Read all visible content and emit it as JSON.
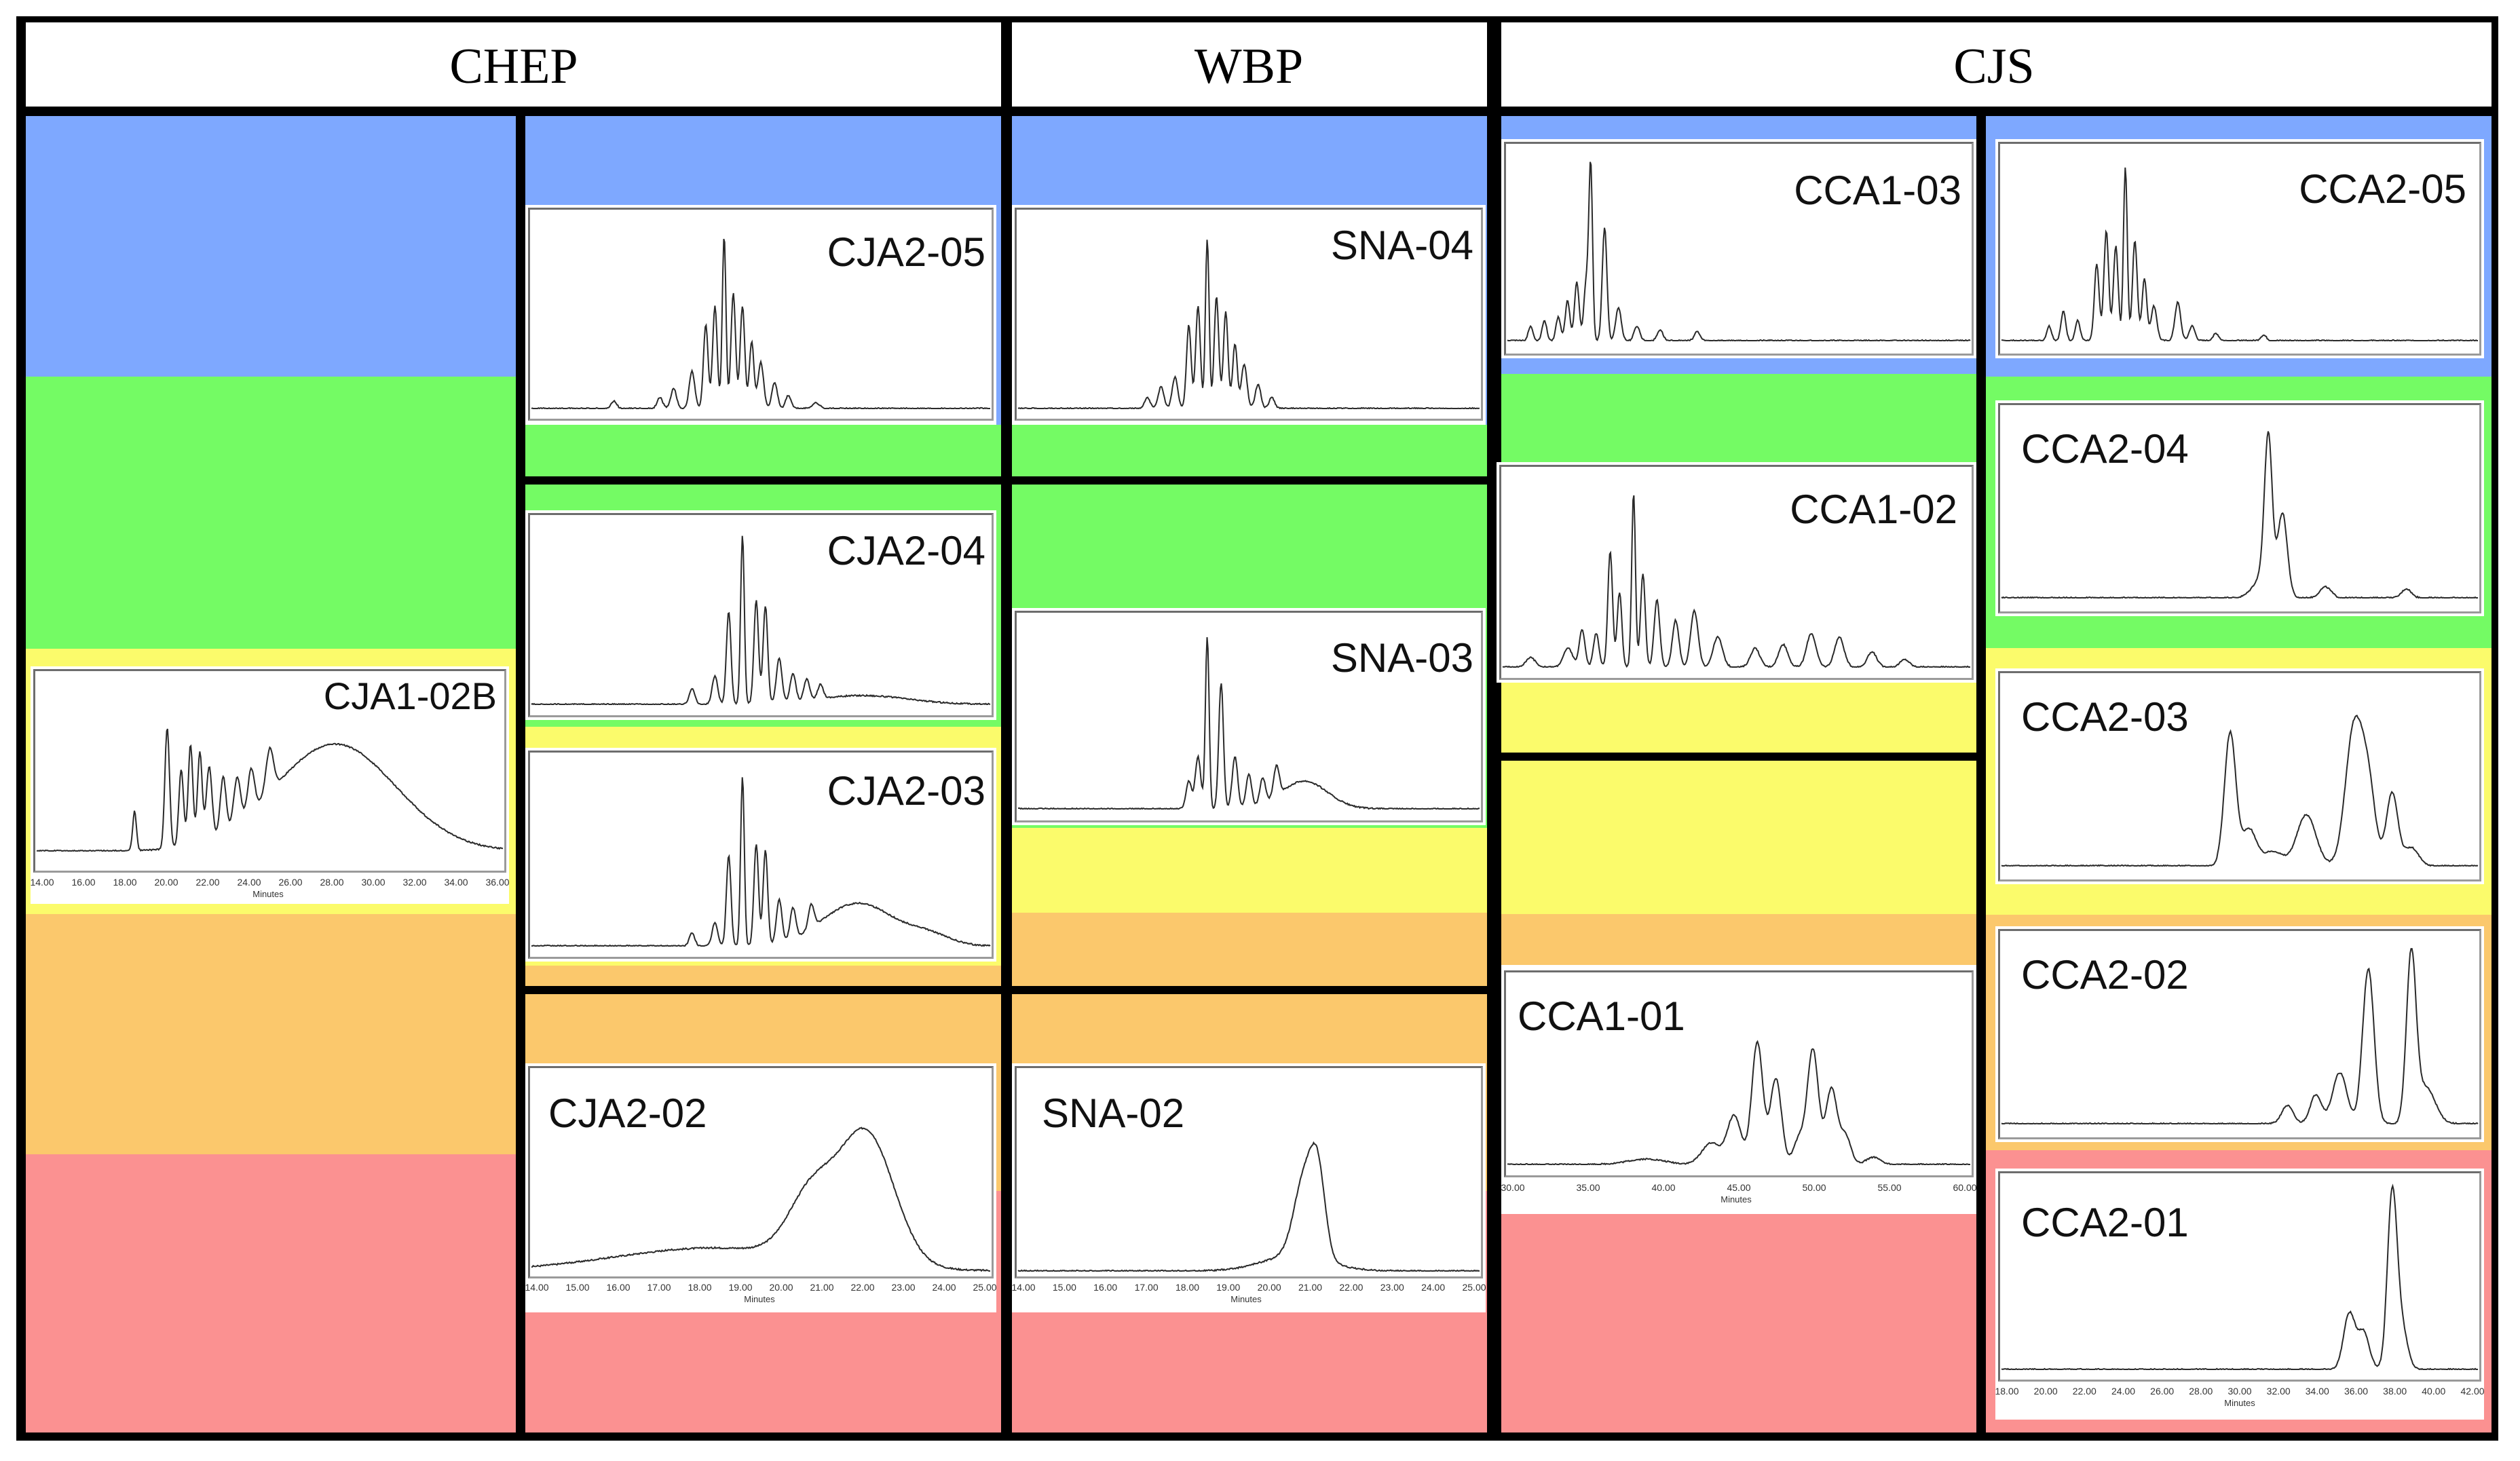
{
  "colors": {
    "blue": "#7ea8ff",
    "green": "#74fb64",
    "yellow": "#fbfb6b",
    "orange": "#fbc86c",
    "red": "#fb9191",
    "frame": "#000000",
    "trace": "#2a2a2a"
  },
  "headers": {
    "chep": "CHEP",
    "wbp": "WBP",
    "cjs": "CJS"
  },
  "chart_data": {
    "type": "line",
    "description": "Grid of chromatogram traces grouped by colour band",
    "panels": [
      {
        "id": "CJA1-02B",
        "label": "CJA1-02B",
        "group": "CHEP",
        "xlabel": "Minutes",
        "ticks": [
          "14.00",
          "16.00",
          "18.00",
          "20.00",
          "22.00",
          "24.00",
          "26.00",
          "28.00",
          "30.00",
          "32.00",
          "34.00",
          "36.00"
        ],
        "peaks": [
          [
            0.21,
            0.23,
            0.004
          ],
          [
            0.28,
            0.7,
            0.005
          ],
          [
            0.31,
            0.45,
            0.005
          ],
          [
            0.33,
            0.58,
            0.005
          ],
          [
            0.35,
            0.52,
            0.005
          ],
          [
            0.37,
            0.42,
            0.006
          ],
          [
            0.4,
            0.32,
            0.006
          ],
          [
            0.43,
            0.26,
            0.007
          ],
          [
            0.46,
            0.24,
            0.007
          ],
          [
            0.5,
            0.25,
            0.008
          ],
          [
            0.64,
            0.62,
            0.13
          ]
        ]
      },
      {
        "id": "CJA2-05",
        "label": "CJA2-05",
        "group": "CHEP",
        "xlabel": "",
        "ticks": [],
        "peaks": [
          [
            0.18,
            0.04,
            0.006
          ],
          [
            0.28,
            0.06,
            0.006
          ],
          [
            0.31,
            0.11,
            0.006
          ],
          [
            0.35,
            0.2,
            0.006
          ],
          [
            0.38,
            0.45,
            0.005
          ],
          [
            0.4,
            0.55,
            0.005
          ],
          [
            0.42,
            0.93,
            0.004
          ],
          [
            0.44,
            0.62,
            0.005
          ],
          [
            0.46,
            0.55,
            0.005
          ],
          [
            0.48,
            0.36,
            0.005
          ],
          [
            0.5,
            0.25,
            0.006
          ],
          [
            0.53,
            0.14,
            0.006
          ],
          [
            0.56,
            0.07,
            0.006
          ],
          [
            0.62,
            0.03,
            0.008
          ]
        ]
      },
      {
        "id": "CJA2-04",
        "label": "CJA2-04",
        "group": "CHEP",
        "xlabel": "",
        "ticks": [],
        "peaks": [
          [
            0.35,
            0.09,
            0.006
          ],
          [
            0.4,
            0.16,
            0.006
          ],
          [
            0.43,
            0.52,
            0.005
          ],
          [
            0.46,
            0.95,
            0.004
          ],
          [
            0.49,
            0.58,
            0.005
          ],
          [
            0.51,
            0.55,
            0.005
          ],
          [
            0.54,
            0.25,
            0.006
          ],
          [
            0.57,
            0.16,
            0.006
          ],
          [
            0.6,
            0.12,
            0.006
          ],
          [
            0.63,
            0.08,
            0.006
          ],
          [
            0.72,
            0.05,
            0.1
          ]
        ]
      },
      {
        "id": "CJA2-03",
        "label": "CJA2-03",
        "group": "CHEP",
        "xlabel": "",
        "ticks": [],
        "peaks": [
          [
            0.35,
            0.07,
            0.006
          ],
          [
            0.4,
            0.13,
            0.006
          ],
          [
            0.43,
            0.5,
            0.005
          ],
          [
            0.46,
            0.93,
            0.004
          ],
          [
            0.49,
            0.56,
            0.005
          ],
          [
            0.51,
            0.52,
            0.005
          ],
          [
            0.54,
            0.24,
            0.006
          ],
          [
            0.57,
            0.17,
            0.006
          ],
          [
            0.61,
            0.13,
            0.006
          ],
          [
            0.66,
            0.12,
            0.06
          ],
          [
            0.74,
            0.17,
            0.06
          ],
          [
            0.86,
            0.07,
            0.05
          ]
        ]
      },
      {
        "id": "CJA2-02",
        "label": "CJA2-02",
        "group": "CHEP",
        "xlabel": "Minutes",
        "ticks": [
          "14.00",
          "15.00",
          "16.00",
          "17.00",
          "18.00",
          "19.00",
          "20.00",
          "21.00",
          "22.00",
          "23.00",
          "24.00",
          "25.00"
        ],
        "peaks": [
          [
            0.4,
            0.12,
            0.22
          ],
          [
            0.61,
            0.32,
            0.05
          ],
          [
            0.73,
            0.68,
            0.06
          ]
        ]
      },
      {
        "id": "SNA-04",
        "label": "SNA-04",
        "group": "WBP",
        "xlabel": "",
        "ticks": [],
        "peaks": [
          [
            0.28,
            0.06,
            0.006
          ],
          [
            0.31,
            0.12,
            0.006
          ],
          [
            0.34,
            0.17,
            0.006
          ],
          [
            0.37,
            0.45,
            0.005
          ],
          [
            0.39,
            0.55,
            0.005
          ],
          [
            0.41,
            0.91,
            0.004
          ],
          [
            0.43,
            0.6,
            0.005
          ],
          [
            0.45,
            0.52,
            0.005
          ],
          [
            0.47,
            0.35,
            0.005
          ],
          [
            0.49,
            0.24,
            0.006
          ],
          [
            0.52,
            0.13,
            0.006
          ],
          [
            0.55,
            0.06,
            0.006
          ]
        ]
      },
      {
        "id": "SNA-03",
        "label": "SNA-03",
        "group": "WBP",
        "xlabel": "",
        "ticks": [],
        "peaks": [
          [
            0.37,
            0.15,
            0.006
          ],
          [
            0.39,
            0.28,
            0.006
          ],
          [
            0.41,
            0.93,
            0.004
          ],
          [
            0.44,
            0.68,
            0.005
          ],
          [
            0.47,
            0.28,
            0.006
          ],
          [
            0.5,
            0.18,
            0.006
          ],
          [
            0.53,
            0.14,
            0.006
          ],
          [
            0.56,
            0.16,
            0.006
          ],
          [
            0.62,
            0.15,
            0.05
          ]
        ]
      },
      {
        "id": "SNA-02",
        "label": "SNA-02",
        "group": "WBP",
        "xlabel": "Minutes",
        "ticks": [
          "14.00",
          "15.00",
          "16.00",
          "17.00",
          "18.00",
          "19.00",
          "20.00",
          "21.00",
          "22.00",
          "23.00",
          "24.00",
          "25.00"
        ],
        "peaks": [
          [
            0.6,
            0.08,
            0.07
          ],
          [
            0.62,
            0.4,
            0.022
          ],
          [
            0.65,
            0.4,
            0.016
          ]
        ]
      },
      {
        "id": "CCA1-03",
        "label": "CCA1-03",
        "group": "CJS",
        "xlabel": "",
        "ticks": [],
        "peaks": [
          [
            0.05,
            0.08,
            0.005
          ],
          [
            0.08,
            0.11,
            0.005
          ],
          [
            0.11,
            0.13,
            0.005
          ],
          [
            0.13,
            0.22,
            0.005
          ],
          [
            0.15,
            0.32,
            0.005
          ],
          [
            0.17,
            0.31,
            0.005
          ],
          [
            0.18,
            0.95,
            0.004
          ],
          [
            0.21,
            0.62,
            0.005
          ],
          [
            0.24,
            0.18,
            0.006
          ],
          [
            0.28,
            0.08,
            0.006
          ],
          [
            0.33,
            0.06,
            0.006
          ],
          [
            0.41,
            0.05,
            0.006
          ]
        ]
      },
      {
        "id": "CCA1-02",
        "label": "CCA1-02",
        "group": "CJS",
        "xlabel": "",
        "ticks": [],
        "peaks": [
          [
            0.06,
            0.05,
            0.01
          ],
          [
            0.14,
            0.1,
            0.01
          ],
          [
            0.17,
            0.2,
            0.006
          ],
          [
            0.2,
            0.18,
            0.006
          ],
          [
            0.23,
            0.62,
            0.005
          ],
          [
            0.25,
            0.4,
            0.005
          ],
          [
            0.28,
            0.93,
            0.004
          ],
          [
            0.3,
            0.5,
            0.005
          ],
          [
            0.33,
            0.36,
            0.006
          ],
          [
            0.37,
            0.25,
            0.007
          ],
          [
            0.41,
            0.3,
            0.008
          ],
          [
            0.46,
            0.16,
            0.01
          ],
          [
            0.54,
            0.1,
            0.01
          ],
          [
            0.6,
            0.12,
            0.01
          ],
          [
            0.66,
            0.18,
            0.01
          ],
          [
            0.72,
            0.16,
            0.01
          ],
          [
            0.79,
            0.08,
            0.01
          ],
          [
            0.86,
            0.04,
            0.01
          ]
        ]
      },
      {
        "id": "CCA1-01",
        "label": "CCA1-01",
        "group": "CJS",
        "xlabel": "Minutes",
        "ticks": [
          "30.00",
          "35.00",
          "40.00",
          "45.00",
          "50.00",
          "55.00",
          "60.00"
        ],
        "peaks": [
          [
            0.3,
            0.03,
            0.04
          ],
          [
            0.44,
            0.12,
            0.02
          ],
          [
            0.49,
            0.27,
            0.015
          ],
          [
            0.54,
            0.68,
            0.012
          ],
          [
            0.58,
            0.48,
            0.012
          ],
          [
            0.63,
            0.14,
            0.012
          ],
          [
            0.66,
            0.64,
            0.012
          ],
          [
            0.7,
            0.42,
            0.012
          ],
          [
            0.73,
            0.16,
            0.012
          ],
          [
            0.79,
            0.04,
            0.015
          ]
        ]
      },
      {
        "id": "CCA2-05",
        "label": "CCA2-05",
        "group": "CJS",
        "xlabel": "",
        "ticks": [],
        "peaks": [
          [
            0.1,
            0.08,
            0.005
          ],
          [
            0.13,
            0.16,
            0.005
          ],
          [
            0.16,
            0.11,
            0.005
          ],
          [
            0.2,
            0.42,
            0.005
          ],
          [
            0.22,
            0.6,
            0.005
          ],
          [
            0.24,
            0.52,
            0.005
          ],
          [
            0.26,
            0.95,
            0.004
          ],
          [
            0.28,
            0.55,
            0.005
          ],
          [
            0.3,
            0.34,
            0.005
          ],
          [
            0.32,
            0.19,
            0.006
          ],
          [
            0.37,
            0.21,
            0.006
          ],
          [
            0.4,
            0.08,
            0.006
          ],
          [
            0.45,
            0.04,
            0.006
          ],
          [
            0.55,
            0.03,
            0.006
          ]
        ]
      },
      {
        "id": "CCA2-04",
        "label": "CCA2-04",
        "group": "CJS",
        "xlabel": "",
        "ticks": [],
        "peaks": [
          [
            0.55,
            0.12,
            0.02
          ],
          [
            0.56,
            0.8,
            0.008
          ],
          [
            0.59,
            0.45,
            0.01
          ],
          [
            0.68,
            0.06,
            0.012
          ],
          [
            0.85,
            0.05,
            0.01
          ]
        ]
      },
      {
        "id": "CCA2-03",
        "label": "CCA2-03",
        "group": "CJS",
        "xlabel": "",
        "ticks": [],
        "peaks": [
          [
            0.48,
            0.73,
            0.012
          ],
          [
            0.52,
            0.2,
            0.015
          ],
          [
            0.57,
            0.08,
            0.02
          ],
          [
            0.64,
            0.28,
            0.02
          ],
          [
            0.74,
            0.75,
            0.018
          ],
          [
            0.77,
            0.4,
            0.015
          ],
          [
            0.82,
            0.4,
            0.012
          ],
          [
            0.86,
            0.1,
            0.015
          ]
        ]
      },
      {
        "id": "CCA2-02",
        "label": "CCA2-02",
        "group": "CJS",
        "xlabel": "",
        "ticks": [],
        "peaks": [
          [
            0.6,
            0.1,
            0.012
          ],
          [
            0.66,
            0.16,
            0.012
          ],
          [
            0.71,
            0.28,
            0.015
          ],
          [
            0.77,
            0.85,
            0.012
          ],
          [
            0.86,
            0.9,
            0.01
          ],
          [
            0.89,
            0.2,
            0.02
          ]
        ]
      },
      {
        "id": "CCA2-01",
        "label": "CCA2-01",
        "group": "CJS",
        "xlabel": "Minutes",
        "ticks": [
          "18.00",
          "20.00",
          "22.00",
          "24.00",
          "26.00",
          "28.00",
          "30.00",
          "32.00",
          "34.00",
          "36.00",
          "38.00",
          "40.00",
          "42.00"
        ],
        "peaks": [
          [
            0.73,
            0.3,
            0.012
          ],
          [
            0.76,
            0.2,
            0.012
          ],
          [
            0.82,
            0.93,
            0.01
          ],
          [
            0.84,
            0.22,
            0.012
          ]
        ]
      }
    ]
  }
}
